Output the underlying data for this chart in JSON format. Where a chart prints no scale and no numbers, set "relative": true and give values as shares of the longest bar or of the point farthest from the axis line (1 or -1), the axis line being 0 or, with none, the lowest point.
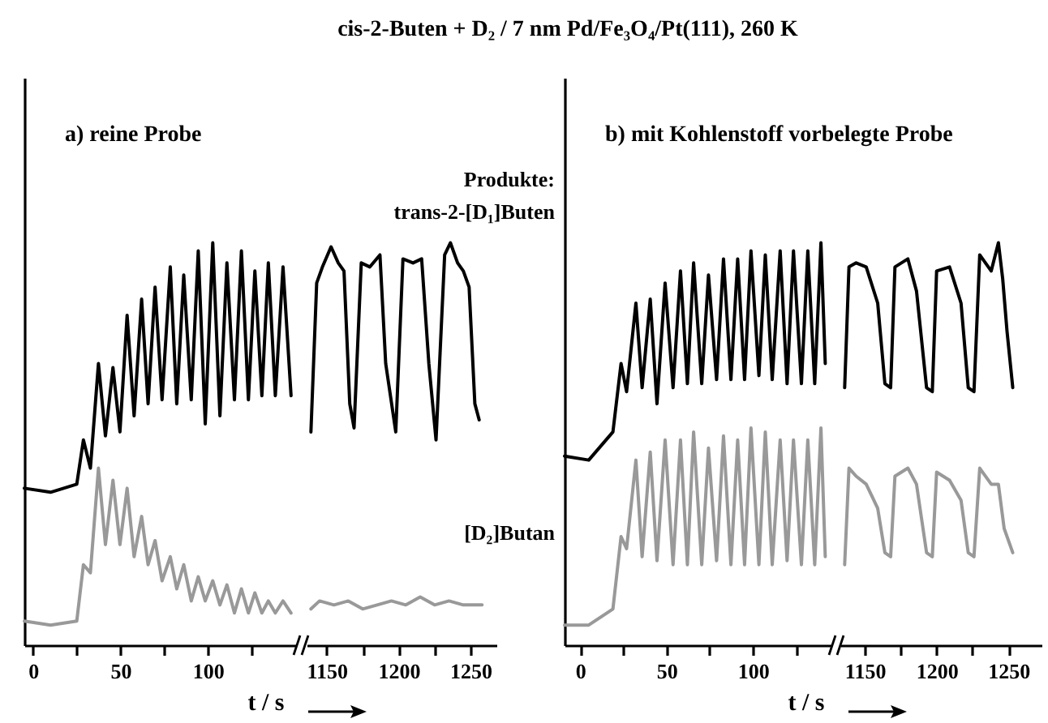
{
  "chart_data": [
    {
      "type": "line",
      "title": "a)  reine Probe",
      "annotations": [
        "cis-2-Buten + D₂ / 7 nm Pd/Fe₃O₄/Pt(111), 260 K"
      ],
      "xlabel": "t / s",
      "relative": true,
      "xlim": [
        -5,
        150
      ],
      "xticks": [
        0,
        {
          "value": 25,
          "label": null
        },
        50,
        {
          "value": 75,
          "label": null
        },
        100,
        {
          "value": 125,
          "label": null
        }
      ],
      "series": [
        {
          "color": "#000000",
          "x": [
            -5,
            10,
            25,
            28.8,
            32.8,
            37.4,
            41.4,
            45.7,
            49.7,
            53.8,
            57.8,
            62.1,
            65.8,
            69.8,
            73.8,
            78.5,
            82.2,
            86.2,
            90.5,
            94.5,
            98.5,
            102.8,
            106.9,
            110.9,
            115.2,
            119.2,
            123.2,
            126.9,
            130.9,
            134.6,
            138.6,
            143,
            147.6
          ],
          "values": [
            0.39,
            0.38,
            0.4,
            0.51,
            0.44,
            0.7,
            0.52,
            0.69,
            0.53,
            0.82,
            0.57,
            0.86,
            0.6,
            0.89,
            0.61,
            0.94,
            0.6,
            0.92,
            0.61,
            0.98,
            0.55,
            1.0,
            0.57,
            0.95,
            0.61,
            0.98,
            0.61,
            0.93,
            0.62,
            0.95,
            0.62,
            0.94,
            0.62
          ]
        },
        {
          "color": "#999999",
          "x": [
            -5,
            10,
            25,
            28.8,
            32.8,
            37.4,
            41.4,
            45.7,
            49.7,
            53.8,
            57.8,
            62.1,
            65.8,
            69.8,
            73.8,
            78.5,
            82.2,
            86.2,
            90.5,
            94.5,
            98.5,
            102.8,
            106.9,
            110.9,
            115.2,
            119.2,
            123.2,
            126.9,
            130.9,
            134.6,
            138.6,
            143,
            147.6
          ],
          "values": [
            0.06,
            0.05,
            0.06,
            0.2,
            0.18,
            0.44,
            0.25,
            0.41,
            0.25,
            0.39,
            0.22,
            0.32,
            0.2,
            0.26,
            0.16,
            0.22,
            0.14,
            0.2,
            0.11,
            0.17,
            0.11,
            0.16,
            0.1,
            0.15,
            0.08,
            0.14,
            0.08,
            0.13,
            0.08,
            0.11,
            0.08,
            0.11,
            0.08
          ]
        }
      ]
    },
    {
      "type": "line",
      "legend_title": "Produkte:",
      "relative": true,
      "xlim": [
        1136,
        1268
      ],
      "xticks": [
        1150,
        {
          "value": 1175,
          "label": null
        },
        1200,
        {
          "value": 1225,
          "label": null
        },
        1250
      ],
      "series": [
        {
          "name": "trans-2-[D₁]Buten",
          "color": "#000000",
          "x": [
            1139,
            1143,
            1147,
            1153,
            1158,
            1162,
            1166,
            1169,
            1174,
            1180,
            1187,
            1191,
            1198,
            1203,
            1210,
            1216,
            1221,
            1226,
            1232,
            1236,
            1241,
            1245,
            1249,
            1253,
            1256
          ],
          "values": [
            0.53,
            0.9,
            0.94,
            0.99,
            0.95,
            0.93,
            0.6,
            0.54,
            0.95,
            0.94,
            0.97,
            0.7,
            0.53,
            0.96,
            0.95,
            0.96,
            0.7,
            0.51,
            0.97,
            1.0,
            0.95,
            0.93,
            0.89,
            0.6,
            0.56
          ]
        },
        {
          "name": "[D₂]Butan",
          "color": "#999999",
          "x": [
            1139,
            1145,
            1155,
            1165,
            1175,
            1185,
            1195,
            1205,
            1215,
            1225,
            1235,
            1245,
            1258
          ],
          "values": [
            0.09,
            0.11,
            0.1,
            0.11,
            0.09,
            0.1,
            0.11,
            0.1,
            0.12,
            0.1,
            0.11,
            0.1,
            0.1
          ]
        }
      ]
    },
    {
      "type": "line",
      "title": "b)  mit Kohlenstoff vorbelegte Probe",
      "xlabel": "t / s",
      "relative": true,
      "xlim": [
        -9,
        145
      ],
      "xticks": [
        0,
        {
          "value": 25,
          "label": null
        },
        50,
        {
          "value": 75,
          "label": null
        },
        100,
        {
          "value": 125,
          "label": null
        }
      ],
      "series": [
        {
          "color": "#000000",
          "x": [
            -9,
            5,
            19,
            23.7,
            26.9,
            32.3,
            35.9,
            40.6,
            44.5,
            49.2,
            53.8,
            58.1,
            62.1,
            65.7,
            70.4,
            74.3,
            79,
            83,
            87.3,
            91.2,
            95.2,
            98.9,
            103.5,
            107.2,
            111.2,
            115.8,
            119.8,
            123.5,
            128.1,
            131.8,
            135.8,
            139.4,
            141.9
          ],
          "values": [
            0.47,
            0.46,
            0.53,
            0.7,
            0.63,
            0.85,
            0.64,
            0.86,
            0.6,
            0.9,
            0.64,
            0.93,
            0.65,
            0.95,
            0.65,
            0.92,
            0.66,
            0.96,
            0.66,
            0.96,
            0.66,
            0.98,
            0.67,
            0.97,
            0.66,
            0.98,
            0.65,
            0.98,
            0.65,
            0.98,
            0.65,
            1.0,
            0.7
          ]
        },
        {
          "color": "#999999",
          "x": [
            -9,
            5,
            19,
            23.7,
            26.9,
            32.3,
            35.9,
            40.6,
            44.5,
            49.2,
            53.8,
            58.1,
            62.1,
            65.7,
            70.4,
            74.3,
            79,
            83,
            87.3,
            91.2,
            95.2,
            98.9,
            103.5,
            107.2,
            111.2,
            115.8,
            119.8,
            123.5,
            128.1,
            131.8,
            135.8,
            139.4,
            141.9
          ],
          "values": [
            0.05,
            0.05,
            0.09,
            0.27,
            0.24,
            0.46,
            0.22,
            0.48,
            0.21,
            0.51,
            0.2,
            0.51,
            0.2,
            0.53,
            0.2,
            0.49,
            0.21,
            0.52,
            0.2,
            0.51,
            0.2,
            0.54,
            0.2,
            0.53,
            0.2,
            0.51,
            0.21,
            0.51,
            0.2,
            0.51,
            0.2,
            0.54,
            0.22
          ]
        }
      ]
    },
    {
      "type": "line",
      "relative": true,
      "xlim": [
        1133,
        1273
      ],
      "xticks": [
        1150,
        {
          "value": 1175,
          "label": null
        },
        1200,
        {
          "value": 1225,
          "label": null
        },
        1250
      ],
      "series": [
        {
          "color": "#000000",
          "x": [
            1136,
            1139,
            1144,
            1151,
            1159,
            1164,
            1168,
            1171,
            1180,
            1186,
            1193,
            1197,
            1200,
            1209,
            1217,
            1222,
            1226,
            1230,
            1238,
            1243,
            1246,
            1249,
            1253
          ],
          "values": [
            0.64,
            0.94,
            0.95,
            0.94,
            0.85,
            0.65,
            0.64,
            0.94,
            0.96,
            0.88,
            0.64,
            0.63,
            0.93,
            0.94,
            0.85,
            0.64,
            0.63,
            0.97,
            0.93,
            1.0,
            0.91,
            0.78,
            0.64
          ]
        },
        {
          "color": "#999999",
          "x": [
            1136,
            1139,
            1144,
            1151,
            1159,
            1164,
            1168,
            1171,
            1180,
            1186,
            1193,
            1197,
            1200,
            1209,
            1217,
            1222,
            1226,
            1230,
            1238,
            1243,
            1247,
            1253
          ],
          "values": [
            0.2,
            0.44,
            0.42,
            0.4,
            0.34,
            0.23,
            0.22,
            0.42,
            0.44,
            0.4,
            0.23,
            0.22,
            0.43,
            0.41,
            0.36,
            0.23,
            0.22,
            0.44,
            0.4,
            0.4,
            0.29,
            0.23
          ]
        }
      ]
    }
  ]
}
